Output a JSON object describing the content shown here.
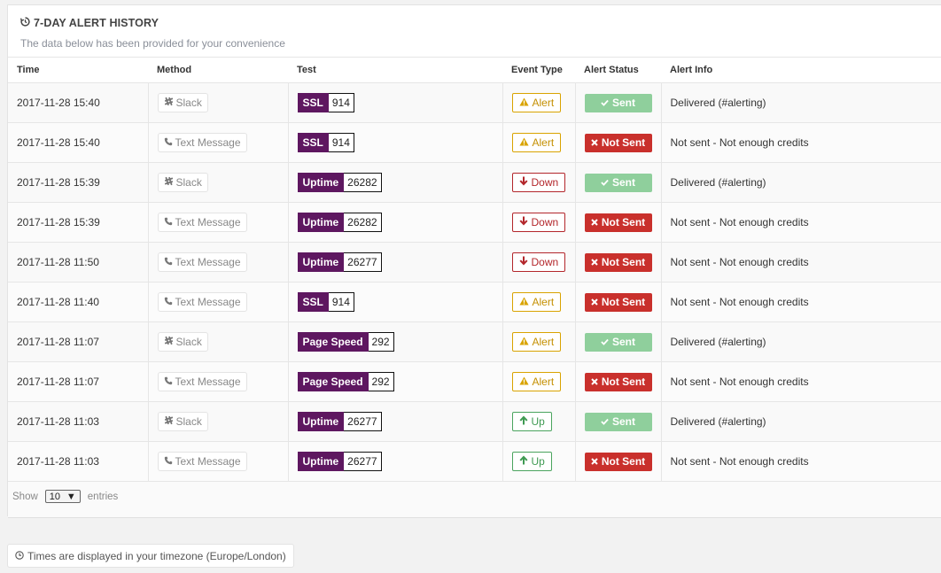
{
  "header": {
    "title": "7-DAY ALERT HISTORY",
    "subtitle": "The data below has been provided for your convenience"
  },
  "columns": [
    "Time",
    "Method",
    "Test",
    "Event Type",
    "Alert Status",
    "Alert Info"
  ],
  "rows": [
    {
      "time": "2017-11-28 15:40",
      "method": "Slack",
      "test_type": "SSL",
      "test_id": "914",
      "event": "Alert",
      "status": "Sent",
      "info": "Delivered (#alerting)"
    },
    {
      "time": "2017-11-28 15:40",
      "method": "Text Message",
      "test_type": "SSL",
      "test_id": "914",
      "event": "Alert",
      "status": "Not Sent",
      "info": "Not sent - Not enough credits"
    },
    {
      "time": "2017-11-28 15:39",
      "method": "Slack",
      "test_type": "Uptime",
      "test_id": "26282",
      "event": "Down",
      "status": "Sent",
      "info": "Delivered (#alerting)"
    },
    {
      "time": "2017-11-28 15:39",
      "method": "Text Message",
      "test_type": "Uptime",
      "test_id": "26282",
      "event": "Down",
      "status": "Not Sent",
      "info": "Not sent - Not enough credits"
    },
    {
      "time": "2017-11-28 11:50",
      "method": "Text Message",
      "test_type": "Uptime",
      "test_id": "26277",
      "event": "Down",
      "status": "Not Sent",
      "info": "Not sent - Not enough credits"
    },
    {
      "time": "2017-11-28 11:40",
      "method": "Text Message",
      "test_type": "SSL",
      "test_id": "914",
      "event": "Alert",
      "status": "Not Sent",
      "info": "Not sent - Not enough credits"
    },
    {
      "time": "2017-11-28 11:07",
      "method": "Slack",
      "test_type": "Page Speed",
      "test_id": "292",
      "event": "Alert",
      "status": "Sent",
      "info": "Delivered (#alerting)"
    },
    {
      "time": "2017-11-28 11:07",
      "method": "Text Message",
      "test_type": "Page Speed",
      "test_id": "292",
      "event": "Alert",
      "status": "Not Sent",
      "info": "Not sent - Not enough credits"
    },
    {
      "time": "2017-11-28 11:03",
      "method": "Slack",
      "test_type": "Uptime",
      "test_id": "26277",
      "event": "Up",
      "status": "Sent",
      "info": "Delivered (#alerting)"
    },
    {
      "time": "2017-11-28 11:03",
      "method": "Text Message",
      "test_type": "Uptime",
      "test_id": "26277",
      "event": "Up",
      "status": "Not Sent",
      "info": "Not sent - Not enough credits"
    }
  ],
  "pagination": {
    "show_label": "Show",
    "page_size": "10",
    "entries_label": "entries"
  },
  "timezone_note": "Times are displayed in your timezone (Europe/London)",
  "colors": {
    "test_badge": "#5e1760",
    "sent": "#8fcf9c",
    "not_sent": "#c9302c",
    "alert": "#d9a300",
    "down": "#b3262b",
    "up": "#4aa45e"
  },
  "icons": {
    "title": "history-icon",
    "slack": "slack-icon",
    "text_message": "phone-icon",
    "alert": "warning-icon",
    "down": "arrow-down-icon",
    "up": "arrow-up-icon",
    "sent": "check-icon",
    "not_sent": "x-icon",
    "timezone": "clock-icon"
  }
}
